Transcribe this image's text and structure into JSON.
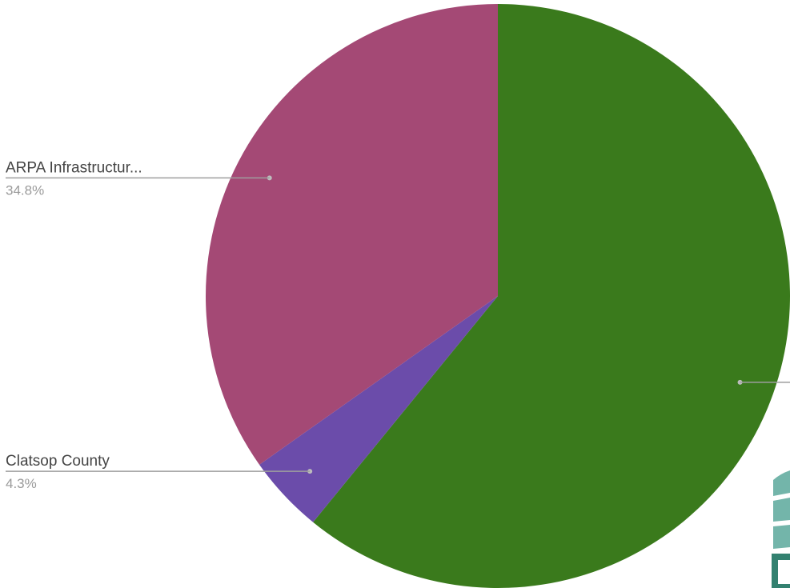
{
  "chart_data": {
    "type": "pie",
    "title": "",
    "slices": [
      {
        "label": "",
        "percent": 60.9,
        "display": "",
        "color": "#3a7a1c"
      },
      {
        "label": "Clatsop County",
        "percent": 4.3,
        "display": "4.3%",
        "color": "#6b4caa"
      },
      {
        "label": "ARPA Infrastructur...",
        "percent": 34.8,
        "display": "34.8%",
        "color": "#a44975"
      }
    ],
    "start_angle_deg": 0,
    "direction": "clockwise",
    "legend": "none"
  },
  "watermark": {
    "kind": "logo",
    "colors": [
      "#5aa89b",
      "#0f6b57"
    ]
  }
}
